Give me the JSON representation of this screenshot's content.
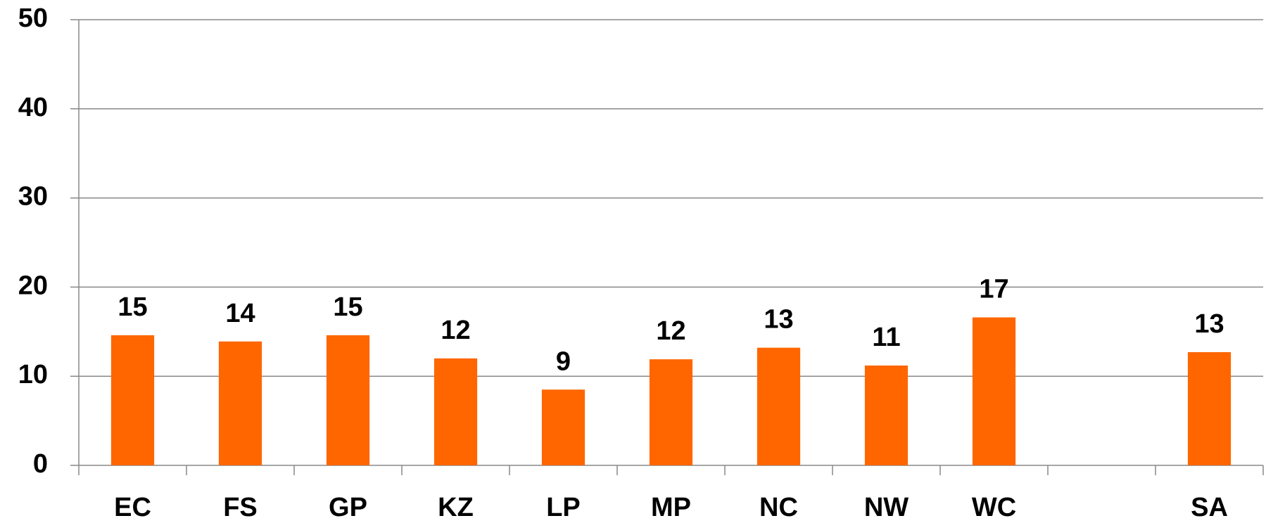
{
  "chart_data": {
    "type": "bar",
    "categories": [
      "EC",
      "FS",
      "GP",
      "KZ",
      "LP",
      "MP",
      "NC",
      "NW",
      "WC",
      null,
      "SA"
    ],
    "values": [
      14.6,
      13.9,
      14.6,
      12.0,
      8.5,
      11.9,
      13.2,
      11.2,
      16.6,
      null,
      12.7
    ],
    "value_labels": [
      "15",
      "14",
      "15",
      "12",
      "9",
      "12",
      "13",
      "11",
      "17",
      null,
      "13"
    ],
    "color": "#ff6600",
    "ylim": [
      0,
      50
    ],
    "yticks": [
      0,
      10,
      20,
      30,
      40,
      50
    ],
    "grid": true
  }
}
